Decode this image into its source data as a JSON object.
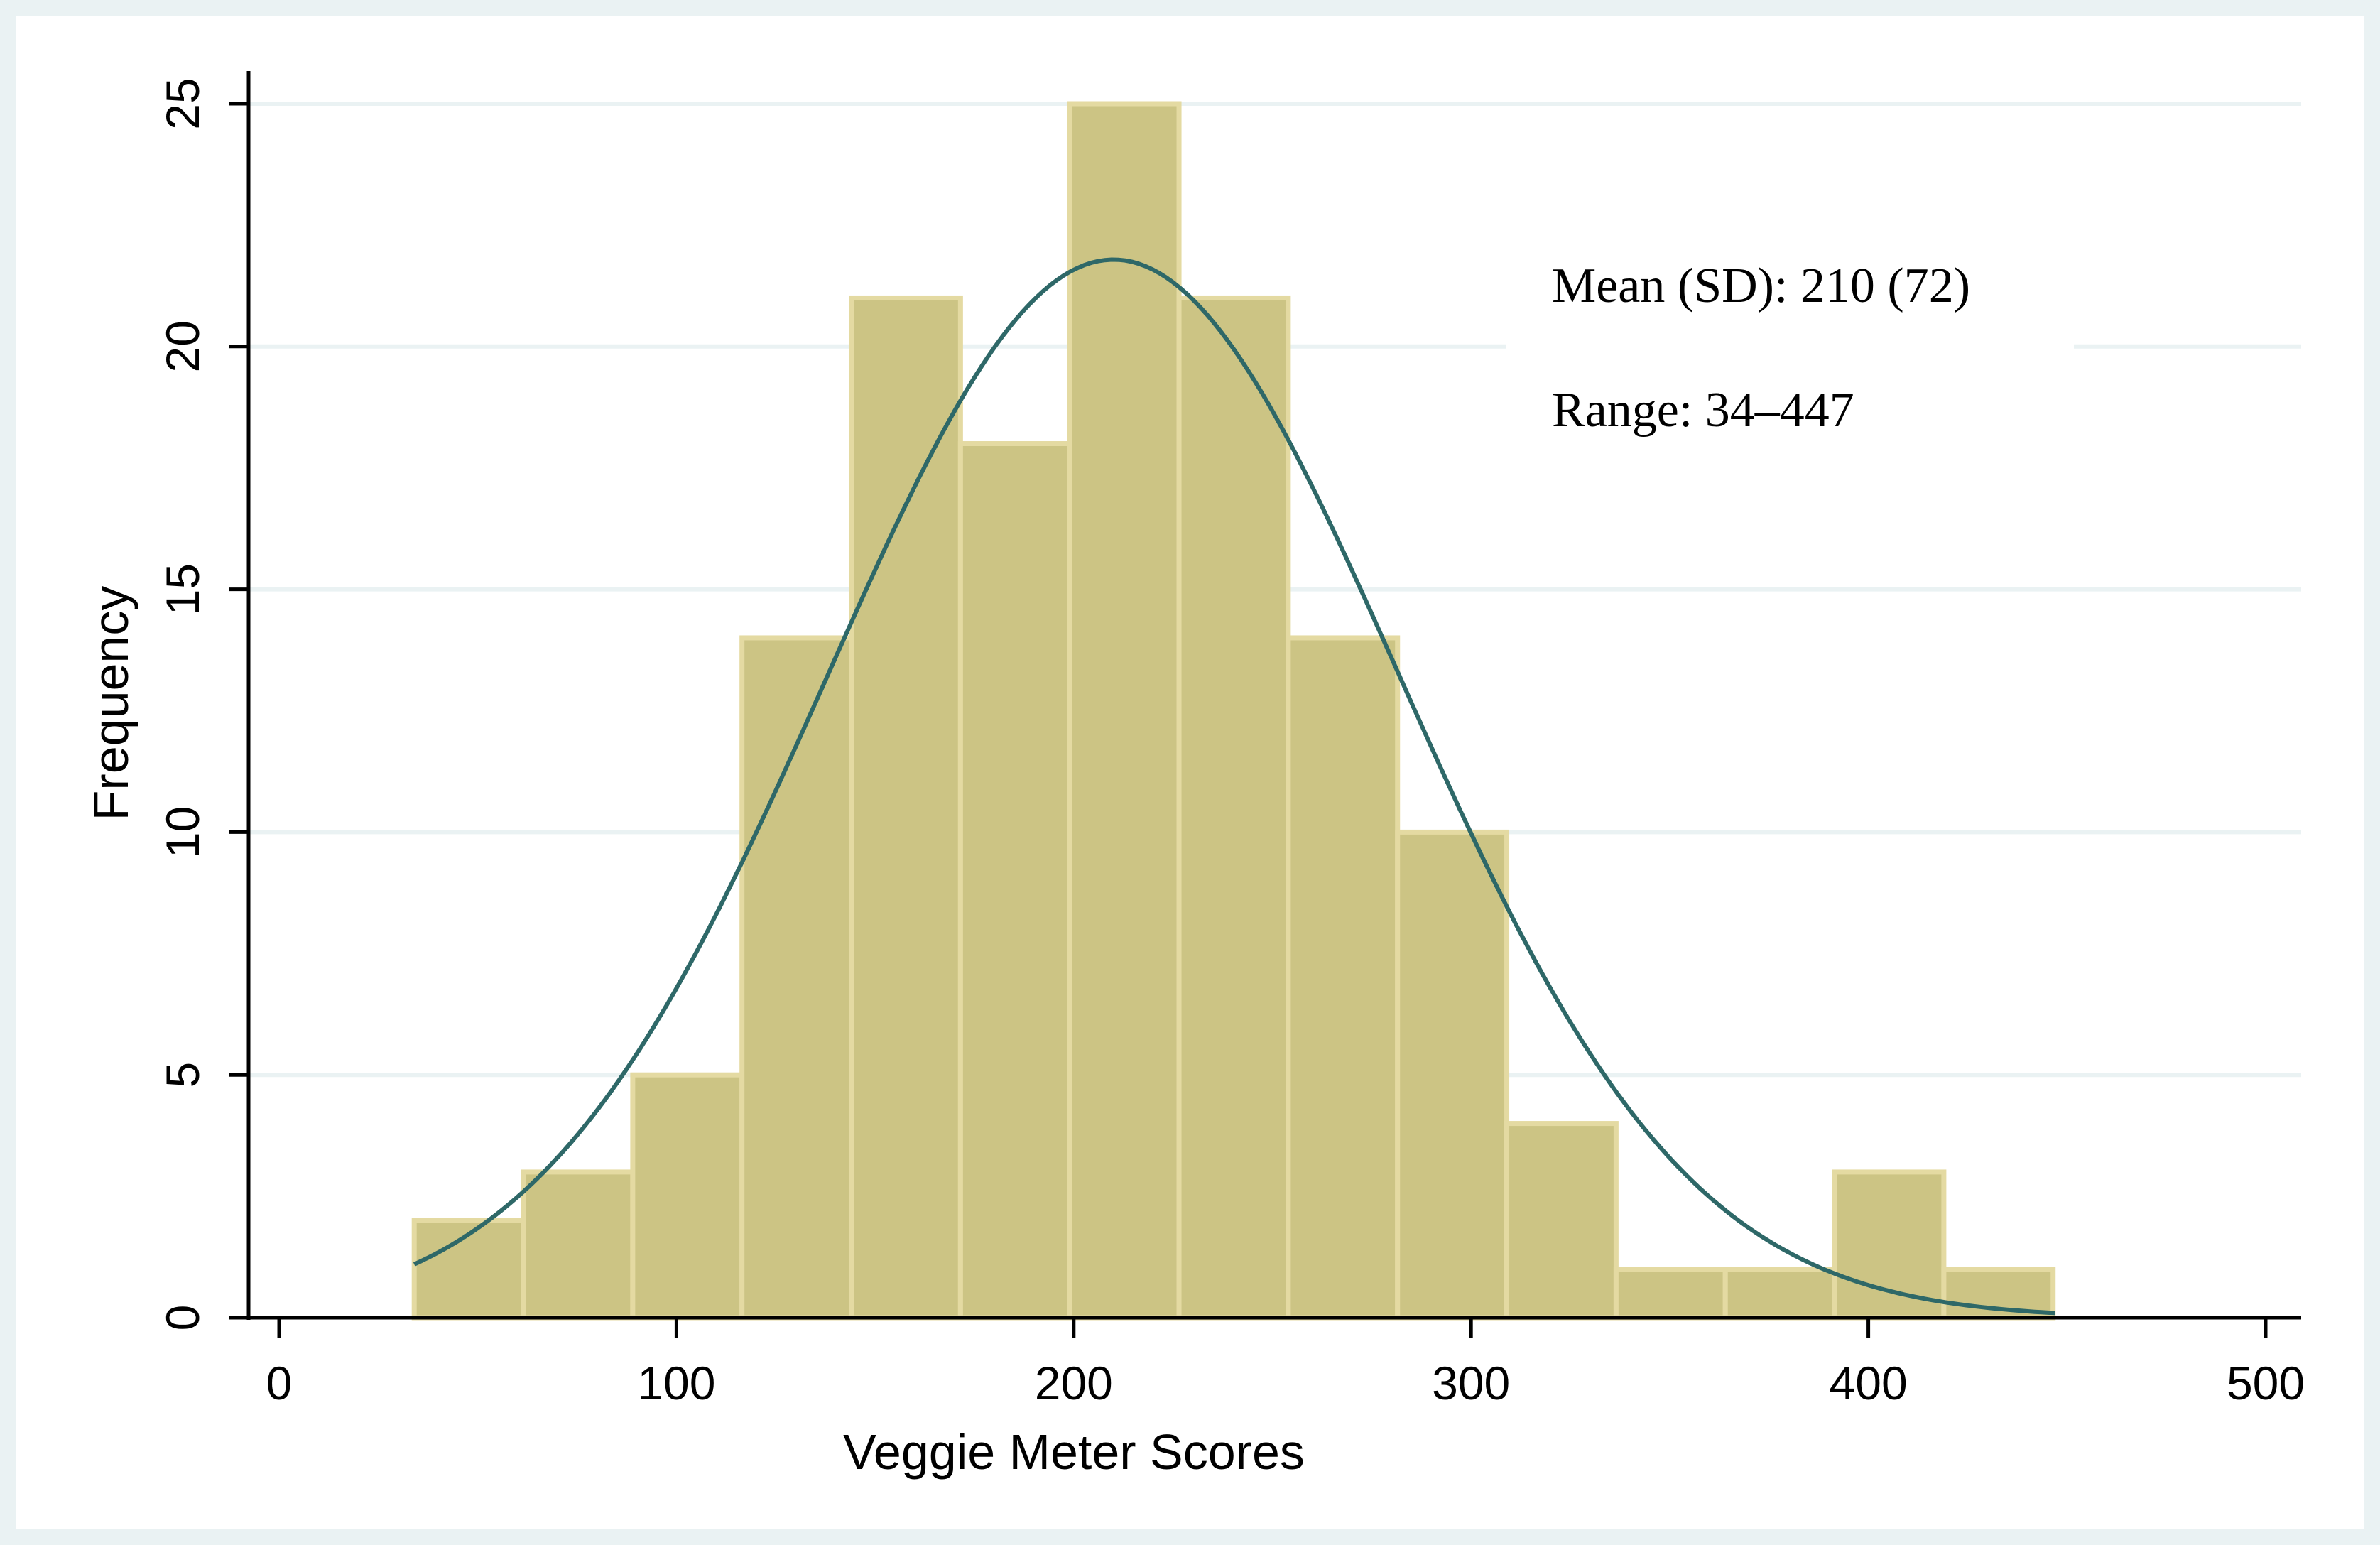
{
  "chart_data": {
    "type": "bar",
    "subtype": "histogram",
    "xlabel": "Veggie Meter Scores",
    "ylabel": "Frequency",
    "xlim": [
      -10,
      510
    ],
    "ylim": [
      0,
      25
    ],
    "xticks": [
      0,
      100,
      200,
      300,
      400,
      500
    ],
    "yticks": [
      0,
      5,
      10,
      15,
      20,
      25
    ],
    "grid": "horizontal",
    "bin_width": 27.5,
    "bins": [
      {
        "x0": 34,
        "x1": 61.5,
        "count": 2
      },
      {
        "x0": 61.5,
        "x1": 89,
        "count": 3
      },
      {
        "x0": 89,
        "x1": 116.5,
        "count": 5
      },
      {
        "x0": 116.5,
        "x1": 144,
        "count": 14
      },
      {
        "x0": 144,
        "x1": 171.5,
        "count": 21
      },
      {
        "x0": 171.5,
        "x1": 199,
        "count": 18
      },
      {
        "x0": 199,
        "x1": 226.5,
        "count": 25
      },
      {
        "x0": 226.5,
        "x1": 254,
        "count": 21
      },
      {
        "x0": 254,
        "x1": 281.5,
        "count": 14
      },
      {
        "x0": 281.5,
        "x1": 309,
        "count": 10
      },
      {
        "x0": 309,
        "x1": 336.5,
        "count": 4
      },
      {
        "x0": 336.5,
        "x1": 364,
        "count": 1
      },
      {
        "x0": 364,
        "x1": 391.5,
        "count": 1
      },
      {
        "x0": 391.5,
        "x1": 419,
        "count": 3
      },
      {
        "x0": 419,
        "x1": 446.5,
        "count": 1
      }
    ],
    "normal_curve": {
      "mean": 210,
      "sd": 72,
      "x_range": [
        34,
        447
      ],
      "n": 143
    },
    "annotations": [
      "Mean (SD): 210 (72)",
      "Range: 34–447"
    ],
    "colors": {
      "bar_fill": "#ccc484",
      "bar_edge": "#e4daa2",
      "curve": "#2e6868",
      "outer_background": "#eaf2f3",
      "plot_background": "#ffffff",
      "gridline": "#eaf2f3",
      "axis": "#000000"
    }
  }
}
